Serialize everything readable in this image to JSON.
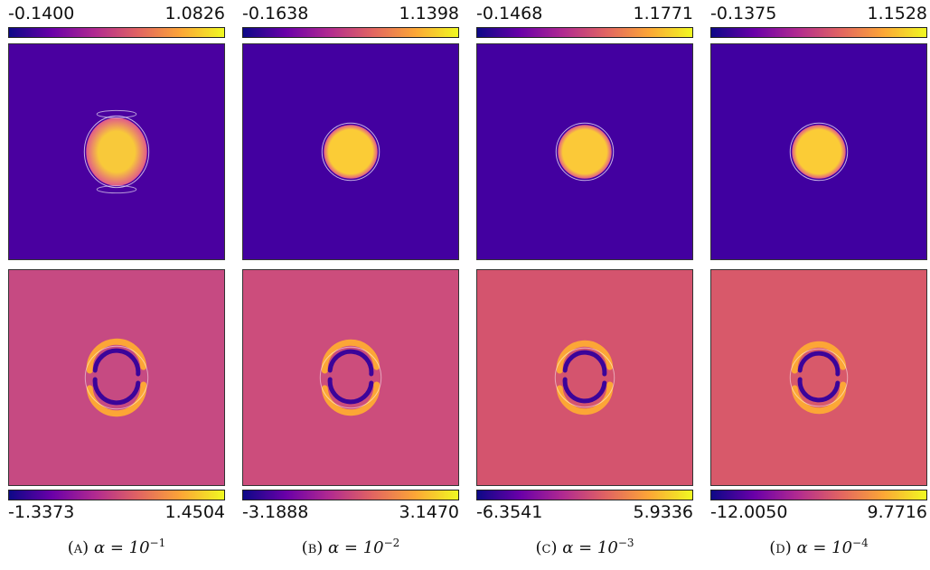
{
  "colormap": [
    "#0d0887",
    "#6a00a8",
    "#b12a90",
    "#e16462",
    "#fca636",
    "#f0f921"
  ],
  "panels": [
    {
      "caption": {
        "tag": "(a)",
        "math": "α = 10",
        "exp": "−1"
      },
      "top": {
        "min": "-0.1400",
        "max": "1.0826",
        "background": "#4a00a0",
        "blob": "#f8c93a"
      },
      "bottom": {
        "min": "-1.3373",
        "max": "1.4504",
        "background": "#c64a82"
      }
    },
    {
      "caption": {
        "tag": "(b)",
        "math": "α = 10",
        "exp": "−2"
      },
      "top": {
        "min": "-0.1638",
        "max": "1.1398",
        "background": "#4300a0",
        "blob": "#fbcc36"
      },
      "bottom": {
        "min": "-3.1888",
        "max": "3.1470",
        "background": "#cc4d7c"
      }
    },
    {
      "caption": {
        "tag": "(c)",
        "math": "α = 10",
        "exp": "−3"
      },
      "top": {
        "min": "-0.1468",
        "max": "1.1771",
        "background": "#4300a0",
        "blob": "#fbc938"
      },
      "bottom": {
        "min": "-6.3541",
        "max": "5.9336",
        "background": "#d4546e"
      }
    },
    {
      "caption": {
        "tag": "(d)",
        "math": "α = 10",
        "exp": "−4"
      },
      "top": {
        "min": "-0.1375",
        "max": "1.1528",
        "background": "#4000a0",
        "blob": "#fbcc36"
      },
      "bottom": {
        "min": "-12.0050",
        "max": "9.7716",
        "background": "#d8596a"
      }
    }
  ]
}
